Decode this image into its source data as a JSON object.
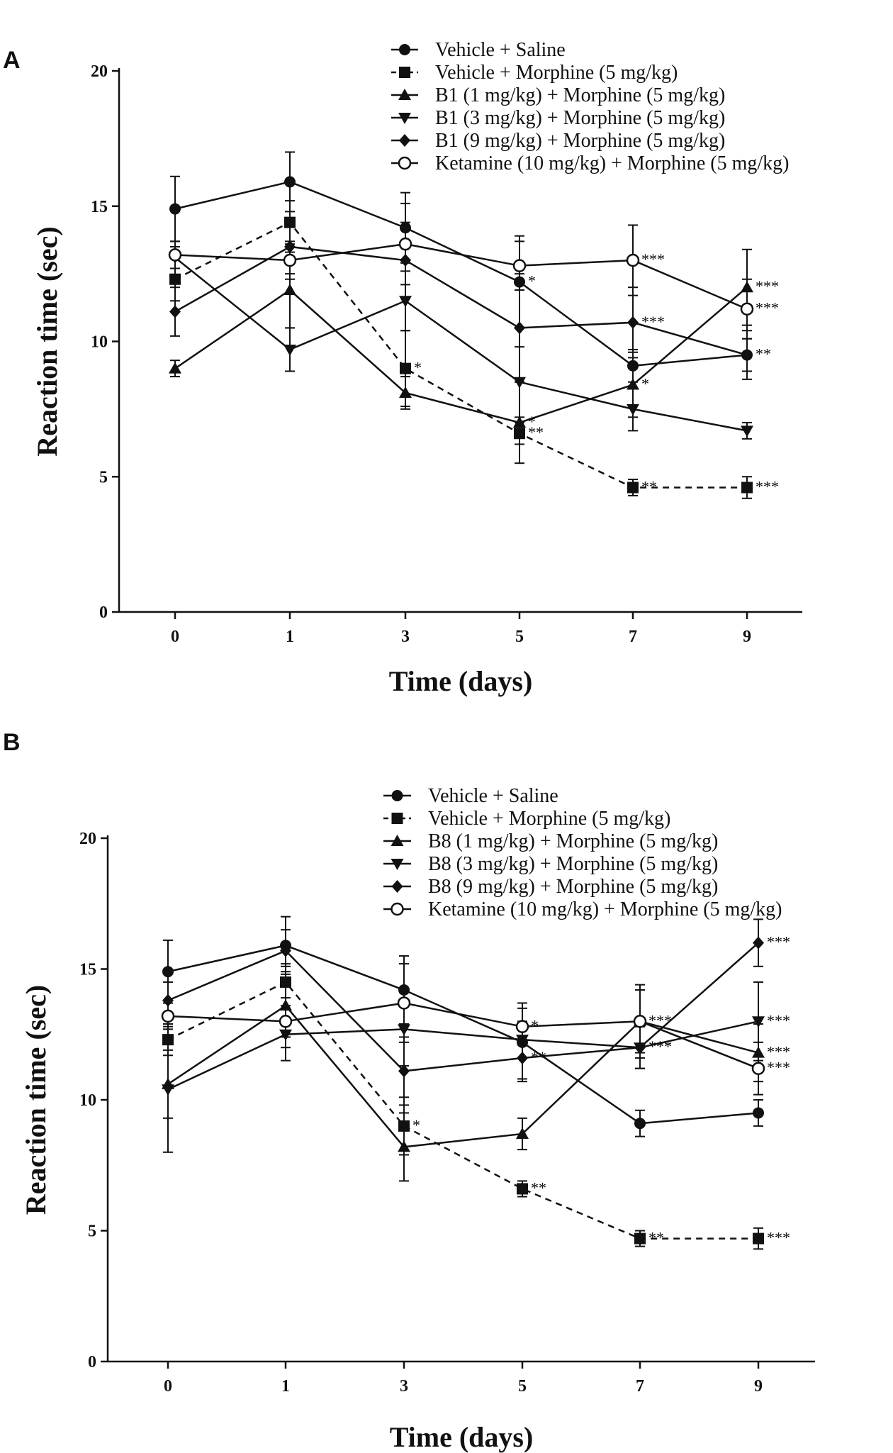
{
  "chart_data": [
    {
      "panel": "A",
      "type": "line",
      "xlabel": "Time (days)",
      "ylabel": "Reaction time (sec)",
      "categories": [
        "0",
        "1",
        "3",
        "5",
        "7",
        "9"
      ],
      "ylim": [
        0,
        20
      ],
      "yticks": [
        "0",
        "5",
        "10",
        "15",
        "20"
      ],
      "series": [
        {
          "name": "Vehicle + Saline",
          "marker": "circle",
          "dash": false,
          "values": [
            14.9,
            15.9,
            14.2,
            12.2,
            9.1,
            9.5
          ],
          "errors": [
            1.2,
            1.1,
            1.3,
            1.7,
            0.6,
            0.6
          ],
          "sig": [
            "",
            "",
            "",
            "*",
            "",
            ""
          ]
        },
        {
          "name": "Vehicle + Morphine (5 mg/kg)",
          "marker": "square",
          "dash": true,
          "values": [
            12.3,
            14.4,
            9.0,
            6.6,
            4.6,
            4.6
          ],
          "errors": [
            0.8,
            0.8,
            1.4,
            0.4,
            0.3,
            0.4
          ],
          "sig": [
            "",
            "",
            "*",
            "**",
            "**",
            "***"
          ]
        },
        {
          "name": "B1 (1 mg/kg) + Morphine (5 mg/kg)",
          "marker": "triangle-up",
          "dash": false,
          "values": [
            9.0,
            11.9,
            8.1,
            7.0,
            8.4,
            12.0
          ],
          "errors": [
            0.3,
            1.4,
            0.6,
            1.5,
            1.2,
            1.4
          ],
          "sig": [
            "",
            "",
            "",
            "*",
            "*",
            "***"
          ]
        },
        {
          "name": "B1 (3 mg/kg) + Morphine (5 mg/kg)",
          "marker": "triangle-down",
          "dash": false,
          "values": [
            13.1,
            9.7,
            11.5,
            8.5,
            7.5,
            6.7
          ],
          "errors": [
            0.4,
            0.8,
            1.1,
            1.3,
            0.8,
            0.3
          ],
          "sig": [
            "",
            "",
            "",
            "",
            "",
            ""
          ]
        },
        {
          "name": "B1 (9 mg/kg) + Morphine (5 mg/kg)",
          "marker": "diamond",
          "dash": false,
          "values": [
            11.1,
            13.5,
            13.0,
            10.5,
            10.7,
            9.5
          ],
          "errors": [
            0.9,
            1.0,
            1.4,
            2.0,
            1.3,
            0.9
          ],
          "sig": [
            "",
            "",
            "",
            "",
            "***",
            "**"
          ]
        },
        {
          "name": "Ketamine (10 mg/kg) + Morphine (5 mg/kg)",
          "marker": "circle-open",
          "dash": false,
          "values": [
            13.2,
            13.0,
            13.6,
            12.8,
            13.0,
            11.2
          ],
          "errors": [
            0.5,
            0.7,
            1.5,
            0.9,
            1.3,
            1.1
          ],
          "sig": [
            "",
            "",
            "",
            "",
            "***",
            "***"
          ]
        }
      ]
    },
    {
      "panel": "B",
      "type": "line",
      "xlabel": "Time (days)",
      "ylabel": "Reaction time (sec)",
      "categories": [
        "0",
        "1",
        "3",
        "5",
        "7",
        "9"
      ],
      "ylim": [
        0,
        20
      ],
      "yticks": [
        "0",
        "5",
        "10",
        "15",
        "20"
      ],
      "series": [
        {
          "name": "Vehicle + Saline",
          "marker": "circle",
          "dash": false,
          "values": [
            14.9,
            15.9,
            14.2,
            12.2,
            9.1,
            9.5
          ],
          "errors": [
            1.2,
            1.1,
            1.3,
            1.5,
            0.5,
            0.5
          ],
          "sig": [
            "",
            "",
            "",
            "",
            "",
            ""
          ]
        },
        {
          "name": "Vehicle + Morphine (5 mg/kg)",
          "marker": "square",
          "dash": true,
          "values": [
            12.3,
            14.5,
            9.0,
            6.6,
            4.7,
            4.7
          ],
          "errors": [
            0.6,
            0.6,
            1.1,
            0.3,
            0.3,
            0.4
          ],
          "sig": [
            "",
            "",
            "*",
            "**",
            "**",
            "***"
          ]
        },
        {
          "name": "B8 (1 mg/kg) + Morphine (5 mg/kg)",
          "marker": "triangle-up",
          "dash": false,
          "values": [
            10.6,
            13.6,
            8.2,
            8.7,
            13.0,
            11.8
          ],
          "errors": [
            1.3,
            1.6,
            1.3,
            0.6,
            1.4,
            1.1
          ],
          "sig": [
            "",
            "",
            "",
            "",
            "***",
            "***"
          ]
        },
        {
          "name": "B8 (3 mg/kg) + Morphine (5 mg/kg)",
          "marker": "triangle-down",
          "dash": false,
          "values": [
            10.4,
            12.5,
            12.7,
            12.3,
            12.0,
            13.0
          ],
          "errors": [
            2.4,
            1.0,
            1.4,
            0.7,
            0.8,
            1.5
          ],
          "sig": [
            "",
            "",
            "",
            "",
            "***",
            "***"
          ]
        },
        {
          "name": "B8 (9 mg/kg) + Morphine (5 mg/kg)",
          "marker": "diamond",
          "dash": false,
          "values": [
            13.8,
            15.7,
            11.1,
            11.6,
            12.0,
            16.0
          ],
          "errors": [
            0.7,
            0.8,
            1.3,
            0.8,
            0.8,
            0.9
          ],
          "sig": [
            "",
            "",
            "",
            "**",
            "***",
            "***"
          ]
        },
        {
          "name": "Ketamine (10 mg/kg) + Morphine (5 mg/kg)",
          "marker": "circle-open",
          "dash": false,
          "values": [
            13.2,
            13.0,
            13.7,
            12.8,
            13.0,
            11.2
          ],
          "errors": [
            0.5,
            0.6,
            1.5,
            0.7,
            1.2,
            1.0
          ],
          "sig": [
            "",
            "",
            "",
            "*",
            "",
            "***"
          ]
        }
      ]
    }
  ]
}
